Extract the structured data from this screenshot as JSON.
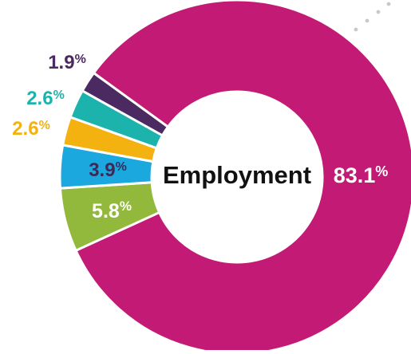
{
  "chart_data": {
    "type": "donut",
    "center_label": "Employment",
    "slices": [
      {
        "value": 83.1,
        "value_text": "83.1",
        "unit": "%",
        "color": "#c31b75",
        "label_color": "#ffffff"
      },
      {
        "value": 5.8,
        "value_text": "5.8",
        "unit": "%",
        "color": "#93b93c",
        "label_color": "#ffffff"
      },
      {
        "value": 3.9,
        "value_text": "3.9",
        "unit": "%",
        "color": "#1aa8df",
        "label_color": "#3a2a5a"
      },
      {
        "value": 2.6,
        "value_text": "2.6",
        "unit": "%",
        "color": "#f3b20f",
        "label_color": "#f3b20f"
      },
      {
        "value": 2.6,
        "value_text": "2.6",
        "unit": "%",
        "color": "#1db3ad",
        "label_color": "#1db3ad"
      },
      {
        "value": 1.9,
        "value_text": "1.9",
        "unit": "%",
        "color": "#4b2a61",
        "label_color": "#4b2a61"
      }
    ],
    "center_label_color": "#111111",
    "decor_dot_color": "#c9c9c9"
  }
}
